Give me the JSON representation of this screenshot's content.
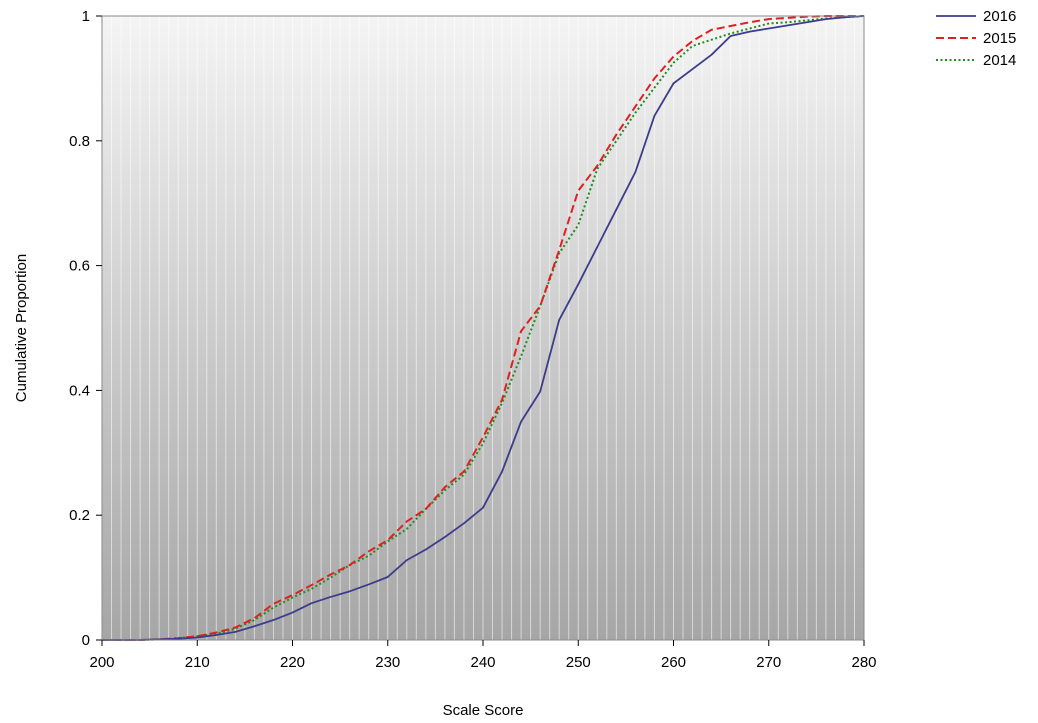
{
  "chart_data": {
    "type": "line",
    "title": "",
    "xlabel": "Scale Score",
    "ylabel": "Cumulative Proportion",
    "xlim": [
      200,
      280
    ],
    "ylim": [
      0,
      1
    ],
    "x_ticks": [
      200,
      210,
      220,
      230,
      240,
      250,
      260,
      270,
      280
    ],
    "x_tick_labels": [
      "200",
      "210",
      "220",
      "230",
      "240",
      "250",
      "260",
      "270",
      "280"
    ],
    "y_ticks": [
      0,
      0.2,
      0.4,
      0.6,
      0.8,
      1
    ],
    "y_tick_labels": [
      "0",
      "0.2",
      "0.4",
      "0.6",
      "0.8",
      "1"
    ],
    "grid": "vertical lines",
    "legend_position": "top-right, outside plot",
    "background": "vertical gradient, light gray to darker gray",
    "series": [
      {
        "name": "2016",
        "color": "#3c3c8c",
        "style": "solid",
        "x": [
          200,
          204,
          206,
          208,
          210,
          212,
          214,
          216,
          218,
          220,
          222,
          224,
          226,
          228,
          230,
          232,
          234,
          236,
          238,
          240,
          242,
          244,
          246,
          248,
          250,
          252,
          254,
          256,
          258,
          260,
          262,
          264,
          266,
          268,
          270,
          272,
          274,
          276,
          278,
          280
        ],
        "y": [
          0,
          0,
          0.001,
          0.002,
          0.004,
          0.008,
          0.013,
          0.022,
          0.032,
          0.044,
          0.059,
          0.069,
          0.078,
          0.089,
          0.101,
          0.128,
          0.145,
          0.165,
          0.187,
          0.212,
          0.27,
          0.35,
          0.398,
          0.513,
          0.57,
          0.63,
          0.69,
          0.75,
          0.84,
          0.892,
          0.915,
          0.938,
          0.968,
          0.975,
          0.98,
          0.985,
          0.99,
          0.995,
          0.998,
          1
        ]
      },
      {
        "name": "2015",
        "color": "#e02020",
        "style": "dashed",
        "x": [
          200,
          204,
          206,
          208,
          210,
          212,
          214,
          216,
          218,
          220,
          222,
          224,
          226,
          228,
          230,
          232,
          234,
          236,
          238,
          240,
          242,
          244,
          246,
          248,
          250,
          252,
          254,
          256,
          258,
          260,
          262,
          264,
          266,
          268,
          270,
          272,
          274,
          276,
          278,
          280
        ],
        "y": [
          0,
          0,
          0.001,
          0.003,
          0.006,
          0.012,
          0.02,
          0.035,
          0.058,
          0.072,
          0.088,
          0.105,
          0.12,
          0.142,
          0.16,
          0.19,
          0.21,
          0.245,
          0.27,
          0.325,
          0.385,
          0.495,
          0.535,
          0.625,
          0.72,
          0.76,
          0.81,
          0.855,
          0.9,
          0.935,
          0.96,
          0.978,
          0.984,
          0.99,
          0.995,
          0.997,
          0.999,
          1,
          1,
          1
        ]
      },
      {
        "name": "2014",
        "color": "#1e8c1e",
        "style": "dotted",
        "x": [
          200,
          204,
          206,
          208,
          210,
          212,
          214,
          216,
          218,
          220,
          222,
          224,
          226,
          228,
          230,
          232,
          234,
          236,
          238,
          240,
          242,
          244,
          246,
          248,
          250,
          252,
          254,
          256,
          258,
          260,
          262,
          264,
          266,
          268,
          270,
          272,
          274,
          276,
          278,
          280
        ],
        "y": [
          0,
          0,
          0.001,
          0.003,
          0.006,
          0.01,
          0.018,
          0.032,
          0.052,
          0.068,
          0.082,
          0.1,
          0.12,
          0.135,
          0.158,
          0.178,
          0.21,
          0.24,
          0.265,
          0.315,
          0.38,
          0.455,
          0.535,
          0.62,
          0.665,
          0.755,
          0.8,
          0.845,
          0.885,
          0.925,
          0.952,
          0.962,
          0.972,
          0.98,
          0.988,
          0.99,
          0.993,
          0.996,
          0.998,
          1
        ]
      }
    ]
  }
}
